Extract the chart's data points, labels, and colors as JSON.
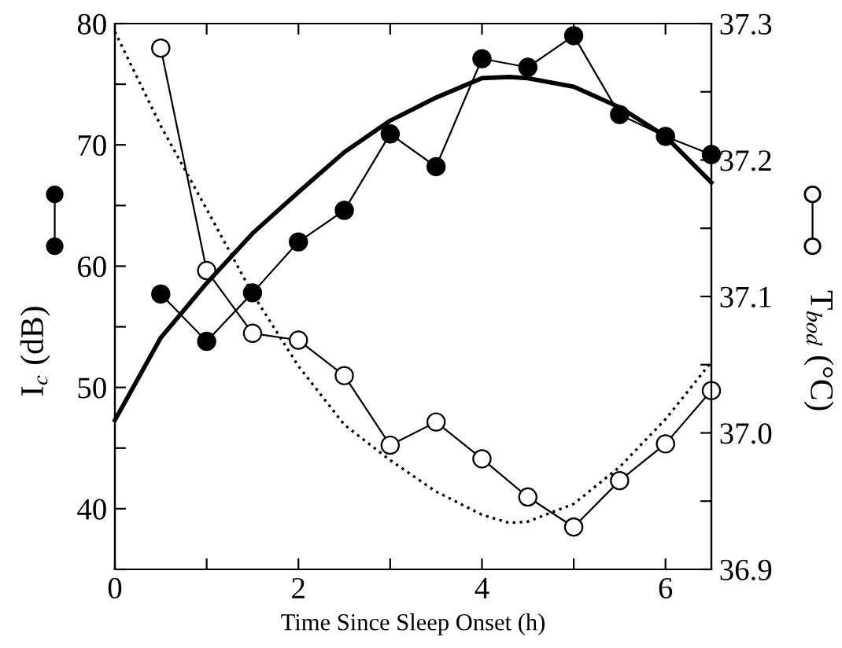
{
  "chart_data": {
    "type": "line",
    "xlabel": "Time Since Sleep Onset (h)",
    "ylabel": "I$_{c}$ (dB)",
    "y2label": "T$_{bod}$ (°C)",
    "xlim": [
      0,
      6.5
    ],
    "xticks": [
      0,
      {
        "value": 1,
        "label": null
      },
      2,
      {
        "value": 3,
        "label": null
      },
      4,
      {
        "value": 5,
        "label": null
      },
      6
    ],
    "ylim": [
      35,
      80
    ],
    "yticks": [
      {
        "value": 35,
        "label": null
      },
      40,
      {
        "value": 45,
        "label": null
      },
      50,
      {
        "value": 55,
        "label": null
      },
      60,
      {
        "value": 65,
        "label": null
      },
      70,
      {
        "value": 75,
        "label": null
      },
      80
    ],
    "y2lim": [
      36.9,
      37.3
    ],
    "y2ticks": [
      {
        "value": 36.9,
        "label": "36.9"
      },
      {
        "value": 36.95,
        "label": null
      },
      {
        "value": 37.0,
        "label": "37.0"
      },
      {
        "value": 37.05,
        "label": null
      },
      {
        "value": 37.1,
        "label": "37.1"
      },
      {
        "value": 37.15,
        "label": null
      },
      {
        "value": 37.2,
        "label": "37.2"
      },
      {
        "value": 37.25,
        "label": null
      },
      {
        "value": 37.3,
        "label": "37.3"
      }
    ],
    "grid": false,
    "legend": false,
    "series": [
      {
        "color": "#000000",
        "axis": "y",
        "marker": "circle",
        "line_style": "solid",
        "x": [
          0.5,
          1,
          1.5,
          2,
          2.5,
          3,
          3.5,
          4,
          4.5,
          5,
          5.5,
          6,
          6.5
        ],
        "values": [
          57.7,
          53.8,
          57.8,
          62.0,
          64.6,
          70.9,
          68.2,
          77.1,
          76.4,
          79.0,
          72.5,
          70.7,
          69.2
        ]
      },
      {
        "color": "#000000",
        "axis": "y2",
        "marker": "circle",
        "line_style": "solid",
        "x": [
          0.5,
          1,
          1.5,
          2,
          2.5,
          3,
          3.5,
          4,
          4.5,
          5,
          5.5,
          6,
          6.5
        ],
        "values": [
          37.282,
          37.119,
          37.073,
          37.068,
          37.042,
          36.991,
          37.008,
          36.981,
          36.953,
          36.931,
          36.965,
          36.992,
          37.031
        ]
      },
      {
        "color": "#000000",
        "axis": "y",
        "marker": "none",
        "line_style": "solid",
        "x": [
          0,
          0.5,
          1,
          1.5,
          2,
          2.5,
          3,
          3.5,
          4,
          4.3,
          4.5,
          5,
          5.5,
          6,
          6.5
        ],
        "values": [
          47.3,
          54.1,
          58.6,
          62.7,
          66.1,
          69.4,
          72.0,
          73.9,
          75.5,
          75.6,
          75.5,
          74.8,
          73.1,
          70.7,
          66.9
        ]
      },
      {
        "color": "#000000",
        "axis": "y2",
        "marker": "none",
        "line_style": "dotted",
        "x": [
          0,
          0.5,
          1,
          1.5,
          2,
          2.5,
          3,
          3.5,
          4,
          4.3,
          4.5,
          5,
          5.5,
          6,
          6.5
        ],
        "values": [
          37.294,
          37.225,
          37.164,
          37.102,
          37.049,
          37.006,
          36.98,
          36.957,
          36.94,
          36.934,
          36.935,
          36.948,
          36.975,
          37.01,
          37.052
        ]
      }
    ]
  }
}
